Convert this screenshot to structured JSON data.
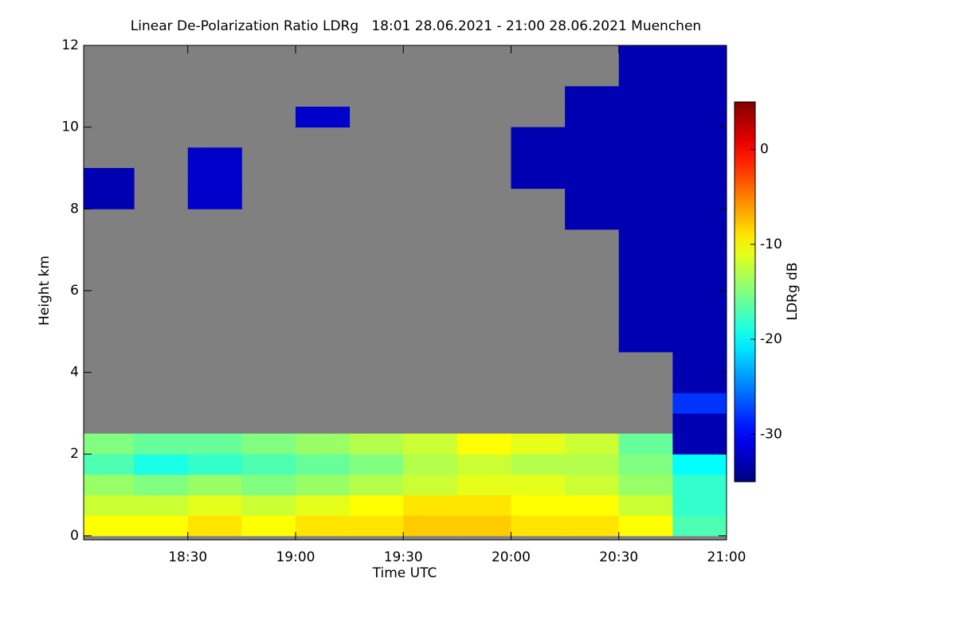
{
  "chart_data": {
    "type": "heatmap",
    "title": "Linear De-Polarization Ratio LDRg   18:01 28.06.2021 - 21:00 28.06.2021 Muenchen",
    "x_label": "Time UTC",
    "y_label": "Height km",
    "colorbar_label": "LDRg dB",
    "colormap": "jet",
    "missing_color": "#808080",
    "xlim": [
      18.0167,
      21.0
    ],
    "xticks": [
      {
        "value": 18.5,
        "label": "18:30"
      },
      {
        "value": 19.0,
        "label": "19:00"
      },
      {
        "value": 19.5,
        "label": "19:30"
      },
      {
        "value": 20.0,
        "label": "20:00"
      },
      {
        "value": 20.5,
        "label": "20:30"
      },
      {
        "value": 21.0,
        "label": "21:00"
      }
    ],
    "ylim": [
      -0.1,
      12
    ],
    "yticks": [
      0,
      2,
      4,
      6,
      8,
      10,
      12
    ],
    "clim": [
      -35,
      5
    ],
    "cticks": [
      0,
      -10,
      -20,
      -30
    ],
    "xbins": [
      18,
      18.25,
      18.5,
      18.75,
      19,
      19.25,
      19.5,
      19.75,
      20,
      20.25,
      20.5,
      20.75,
      21
    ],
    "ybins": [
      0,
      0.5,
      1,
      1.5,
      2,
      2.5,
      3,
      3.5,
      4,
      4.5,
      5,
      5.5,
      6,
      6.5,
      7,
      7.5,
      8,
      8.5,
      9,
      9.5,
      10,
      10.5,
      11,
      11.5,
      12
    ],
    "z": [
      [
        -10,
        -10,
        -9,
        -10,
        -9,
        -9,
        -8,
        -8,
        -9,
        -9,
        -10,
        -17
      ],
      [
        -12,
        -12,
        -11,
        -12,
        -11,
        -10,
        -9,
        -9,
        -10,
        -10,
        -12,
        -18
      ],
      [
        -14,
        -15,
        -14,
        -15,
        -14,
        -13,
        -12,
        -11,
        -11,
        -12,
        -14,
        -18
      ],
      [
        -17,
        -19,
        -18,
        -17,
        -16,
        -15,
        -13,
        -12,
        -13,
        -13,
        -15,
        -20
      ],
      [
        -15,
        -16,
        -16,
        -15,
        -14,
        -13,
        -12,
        -10,
        -11,
        -12,
        -16,
        -33
      ],
      [
        null,
        null,
        null,
        null,
        null,
        null,
        null,
        null,
        null,
        null,
        null,
        -33
      ],
      [
        null,
        null,
        null,
        null,
        null,
        null,
        null,
        null,
        null,
        null,
        null,
        -28
      ],
      [
        null,
        null,
        null,
        null,
        null,
        null,
        null,
        null,
        null,
        null,
        null,
        -33
      ],
      [
        null,
        null,
        null,
        null,
        null,
        null,
        null,
        null,
        null,
        null,
        null,
        -33
      ],
      [
        null,
        null,
        null,
        null,
        null,
        null,
        null,
        null,
        null,
        null,
        -33,
        -33
      ],
      [
        null,
        null,
        null,
        null,
        null,
        null,
        null,
        null,
        null,
        null,
        -33,
        -33
      ],
      [
        null,
        null,
        null,
        null,
        null,
        null,
        null,
        null,
        null,
        null,
        -33,
        -33
      ],
      [
        null,
        null,
        null,
        null,
        null,
        null,
        null,
        null,
        null,
        null,
        -33,
        -33
      ],
      [
        null,
        null,
        null,
        null,
        null,
        null,
        null,
        null,
        null,
        null,
        -33,
        -33
      ],
      [
        null,
        null,
        null,
        null,
        null,
        null,
        null,
        null,
        null,
        null,
        -33,
        -33
      ],
      [
        null,
        null,
        null,
        null,
        null,
        null,
        null,
        null,
        null,
        -33,
        -33,
        -33
      ],
      [
        -33,
        null,
        -32,
        null,
        null,
        null,
        null,
        null,
        null,
        -33,
        -33,
        -33
      ],
      [
        -33,
        null,
        -32,
        null,
        null,
        null,
        null,
        null,
        -33,
        -33,
        -33,
        -33
      ],
      [
        null,
        null,
        -32,
        null,
        null,
        null,
        null,
        null,
        -33,
        -33,
        -33,
        -33
      ],
      [
        null,
        null,
        null,
        null,
        null,
        null,
        null,
        null,
        -33,
        -33,
        -33,
        -33
      ],
      [
        null,
        null,
        null,
        null,
        -32,
        null,
        null,
        null,
        null,
        -33,
        -33,
        -33
      ],
      [
        null,
        null,
        null,
        null,
        null,
        null,
        null,
        null,
        null,
        -33,
        -33,
        -33
      ],
      [
        null,
        null,
        null,
        null,
        null,
        null,
        null,
        null,
        null,
        null,
        -33,
        -33
      ],
      [
        null,
        null,
        null,
        null,
        null,
        null,
        null,
        null,
        null,
        null,
        -33,
        -33
      ]
    ]
  }
}
